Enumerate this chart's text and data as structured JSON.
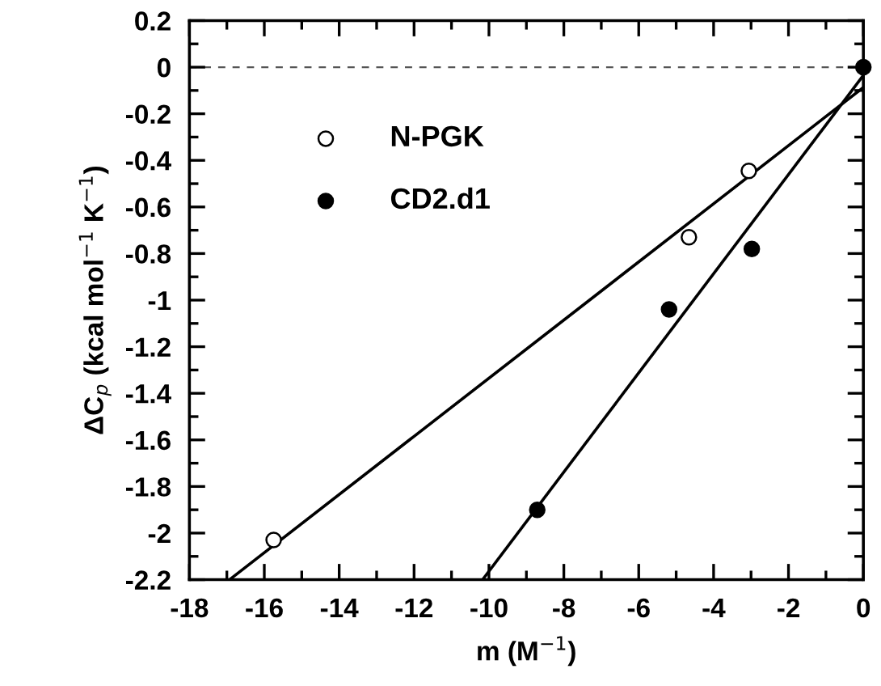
{
  "chart_data": {
    "type": "scatter",
    "xlabel": "m (M$^{−1}$)",
    "ylabel": "ΔC$_{p}$ (kcal mol$^{−1}$ K$^{−1}$)",
    "xlim": [
      -18,
      0
    ],
    "xticks": [
      -18,
      -16,
      -14,
      -12,
      -10,
      -8,
      -6,
      -4,
      -2,
      0
    ],
    "ylim": [
      -2.2,
      0.2
    ],
    "yticks": [
      -2.2,
      -2,
      -1.8,
      -1.6,
      -1.4,
      -1.2,
      -1,
      -0.8,
      -0.6,
      -0.4,
      -0.2,
      0,
      0.2
    ],
    "grid": false,
    "legend": "top left",
    "series": [
      {
        "name": "N-PGK",
        "marker": "circle",
        "color": "#ffffff",
        "x": [
          -15.75,
          -4.66,
          -3.06
        ],
        "values": [
          -2.03,
          -0.73,
          -0.445
        ]
      },
      {
        "name": "CD2.d1",
        "marker": "circle",
        "color": "#000000",
        "x": [
          -8.71,
          -5.19,
          -2.98,
          0
        ],
        "values": [
          -1.9,
          -1.04,
          -0.78,
          0
        ]
      },
      {
        "type": "line",
        "color": "#000000",
        "x": [
          -16.93,
          0
        ],
        "values": [
          -2.2,
          -0.087
        ]
      },
      {
        "type": "line",
        "color": "#000000",
        "x": [
          -10.17,
          0
        ],
        "values": [
          -2.2,
          -0.035
        ]
      }
    ],
    "ref_lines": [
      {
        "axis": "y",
        "value": 0,
        "color": "#555555",
        "line_style": "dashed"
      }
    ]
  }
}
